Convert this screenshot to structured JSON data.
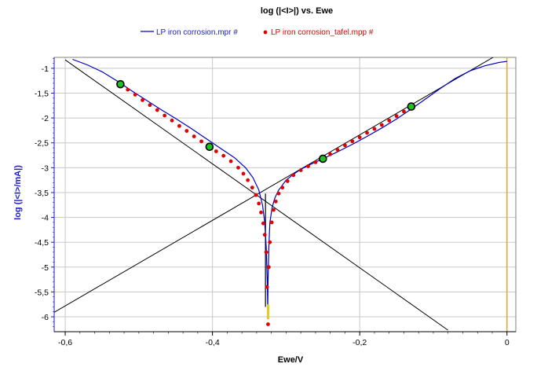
{
  "chart_data": {
    "type": "line",
    "title": "log (|<I>|) vs. Ewe",
    "xlabel": "Ewe/V",
    "ylabel": "log (|<I>/mA|)",
    "xlim": [
      -0.615,
      0.012
    ],
    "ylim": [
      -6.3,
      -0.78
    ],
    "grid": true,
    "legend_position": "top",
    "x_ticks": [
      -0.6,
      -0.4,
      -0.2,
      0
    ],
    "x_tick_labels": [
      "-0,6",
      "-0,4",
      "-0,2",
      "0"
    ],
    "y_ticks": [
      -1,
      -1.5,
      -2,
      -2.5,
      -3,
      -3.5,
      -4,
      -4.5,
      -5,
      -5.5,
      -6
    ],
    "y_tick_labels": [
      "-1",
      "-1,5",
      "-2",
      "-2,5",
      "-3",
      "-3,5",
      "-4",
      "-4,5",
      "-5",
      "-5,5",
      "-6"
    ],
    "series": [
      {
        "name": "LP iron corrosion.mpr #",
        "color": "#0000c0",
        "style": "line",
        "x": [
          -0.59,
          -0.57,
          -0.55,
          -0.53,
          -0.51,
          -0.49,
          -0.47,
          -0.45,
          -0.43,
          -0.41,
          -0.39,
          -0.37,
          -0.355,
          -0.345,
          -0.337,
          -0.332,
          -0.329,
          -0.327,
          -0.3255,
          -0.325,
          -0.3245,
          -0.3235,
          -0.322,
          -0.319,
          -0.315,
          -0.31,
          -0.3,
          -0.29,
          -0.28,
          -0.265,
          -0.25,
          -0.23,
          -0.21,
          -0.19,
          -0.17,
          -0.15,
          -0.13,
          -0.11,
          -0.09,
          -0.07,
          -0.05,
          -0.03,
          -0.01,
          0.0
        ],
        "y": [
          -0.82,
          -0.93,
          -1.07,
          -1.25,
          -1.45,
          -1.64,
          -1.83,
          -2.01,
          -2.2,
          -2.4,
          -2.6,
          -2.8,
          -3.0,
          -3.2,
          -3.45,
          -3.75,
          -4.1,
          -4.6,
          -5.3,
          -5.85,
          -5.3,
          -4.6,
          -4.1,
          -3.8,
          -3.6,
          -3.45,
          -3.25,
          -3.13,
          -3.03,
          -2.92,
          -2.82,
          -2.68,
          -2.53,
          -2.37,
          -2.2,
          -2.02,
          -1.82,
          -1.61,
          -1.4,
          -1.2,
          -1.05,
          -0.95,
          -0.88,
          -0.86
        ]
      },
      {
        "name": "LP iron corrosion_tafel.mpp #",
        "color": "#e00000",
        "style": "markers",
        "x": [
          -0.525,
          -0.515,
          -0.505,
          -0.495,
          -0.485,
          -0.475,
          -0.465,
          -0.455,
          -0.445,
          -0.435,
          -0.425,
          -0.415,
          -0.405,
          -0.395,
          -0.385,
          -0.375,
          -0.365,
          -0.358,
          -0.352,
          -0.346,
          -0.341,
          -0.337,
          -0.334,
          -0.331,
          -0.329,
          -0.327,
          -0.326,
          -0.3245,
          -0.3235,
          -0.322,
          -0.3195,
          -0.317,
          -0.314,
          -0.31,
          -0.305,
          -0.298,
          -0.29,
          -0.28,
          -0.27,
          -0.26,
          -0.25,
          -0.24,
          -0.23,
          -0.22,
          -0.21,
          -0.2,
          -0.19,
          -0.18,
          -0.17,
          -0.16,
          -0.15,
          -0.14,
          -0.13
        ],
        "y": [
          -1.32,
          -1.43,
          -1.53,
          -1.64,
          -1.74,
          -1.84,
          -1.95,
          -2.05,
          -2.16,
          -2.26,
          -2.37,
          -2.47,
          -2.58,
          -2.67,
          -2.76,
          -2.87,
          -3.0,
          -3.12,
          -3.25,
          -3.4,
          -3.55,
          -3.72,
          -3.9,
          -4.12,
          -4.35,
          -4.7,
          -5.4,
          -6.15,
          -5.0,
          -4.5,
          -4.1,
          -3.85,
          -3.68,
          -3.52,
          -3.4,
          -3.27,
          -3.15,
          -3.05,
          -2.97,
          -2.89,
          -2.82,
          -2.73,
          -2.64,
          -2.55,
          -2.47,
          -2.39,
          -2.3,
          -2.22,
          -2.14,
          -2.05,
          -1.96,
          -1.87,
          -1.77
        ]
      }
    ],
    "tafel_fits": [
      {
        "x": [
          -0.6,
          -0.08
        ],
        "y": [
          -0.83,
          -6.27
        ],
        "color": "#000000"
      },
      {
        "x": [
          -0.615,
          -0.012
        ],
        "y": [
          -5.91,
          -0.72
        ],
        "color": "#000000"
      }
    ],
    "fit_points": [
      {
        "x": -0.525,
        "y": -1.32
      },
      {
        "x": -0.404,
        "y": -2.58
      },
      {
        "x": -0.25,
        "y": -2.82
      },
      {
        "x": -0.13,
        "y": -1.77
      }
    ],
    "ecorr_vertical": {
      "x": -0.328,
      "y": [
        -3.52,
        -5.8
      ],
      "color": "#000000"
    },
    "ecorr_marker": {
      "x": -0.3245,
      "y": [
        -5.75,
        -6.05
      ],
      "color": "#e6c820"
    },
    "vertical_marker": {
      "x": 0.0,
      "color": "#f0a030"
    }
  }
}
